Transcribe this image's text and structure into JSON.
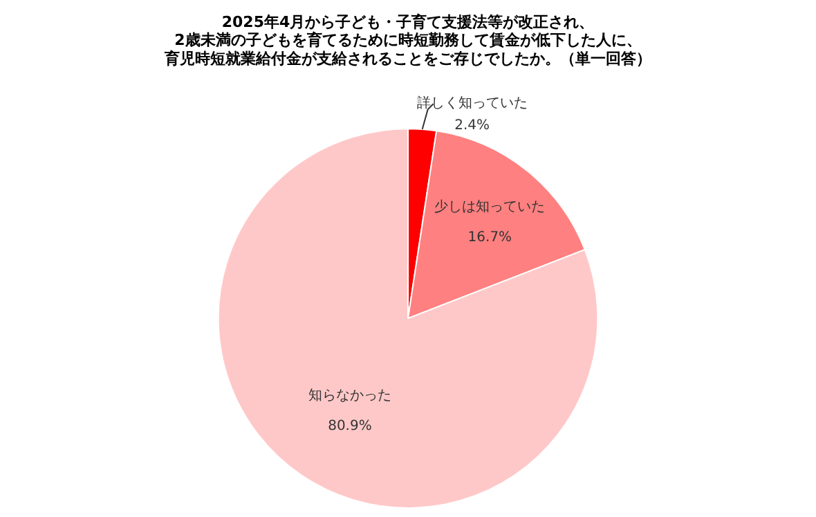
{
  "chart_data": {
    "type": "pie",
    "title": "2025年4月から子ども・子育て支援法等が改正され、2歳未満の子どもを育てるために時短勤務して賃金が低下した人に、育児時短就業給付金が支給されることをご存じでしたか。（単一回答）",
    "categories": [
      "詳しく知っていた",
      "少しは知っていた",
      "知らなかった"
    ],
    "values": [
      2.4,
      16.7,
      80.9
    ],
    "value_labels": [
      "2.4%",
      "16.7%",
      "80.9%"
    ],
    "colors": [
      "#ff0000",
      "#ff8080",
      "#ffc8c8"
    ],
    "legend": false
  }
}
